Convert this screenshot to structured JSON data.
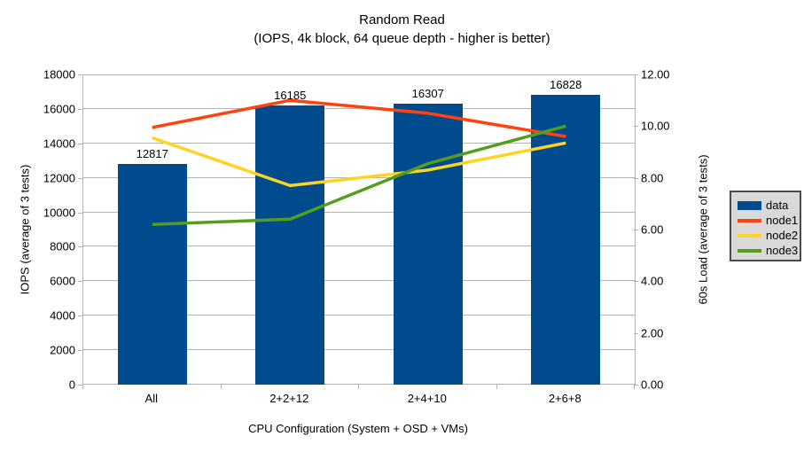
{
  "title": {
    "line1": "Random Read",
    "line2": "(IOPS, 4k block, 64 queue depth - higher is better)"
  },
  "colors": {
    "bar": "#004B8D",
    "node1": "#FF420E",
    "node2": "#FFD320",
    "node3": "#579D1C",
    "grid": "#B3B3B3",
    "legend_bg": "#D9D9D9",
    "legend_border": "#4A4A4A"
  },
  "chart_data": {
    "type": "bar+line combo",
    "title": "Random Read (IOPS, 4k block, 64 queue depth - higher is better)",
    "categories": [
      "All",
      "2+2+12",
      "2+4+10",
      "2+6+8"
    ],
    "bar_series": {
      "name": "data",
      "axis": "left",
      "color": "#004B8D",
      "values": [
        12817,
        16185,
        16307,
        16828
      ],
      "data_labels": [
        "12817",
        "16185",
        "16307",
        "16828"
      ]
    },
    "line_series": [
      {
        "name": "node1",
        "axis": "right",
        "color": "#FF420E",
        "values": [
          9.95,
          11.0,
          10.5,
          9.6
        ]
      },
      {
        "name": "node2",
        "axis": "right",
        "color": "#FFD320",
        "values": [
          9.55,
          7.7,
          8.3,
          9.35
        ]
      },
      {
        "name": "node3",
        "axis": "right",
        "color": "#579D1C",
        "values": [
          6.2,
          6.4,
          8.55,
          10.0
        ]
      }
    ],
    "left_axis": {
      "title": "IOPS (average of 3 tests)",
      "min": 0,
      "max": 18000,
      "step": 2000,
      "tick_labels": [
        "0",
        "2000",
        "4000",
        "6000",
        "8000",
        "10000",
        "12000",
        "14000",
        "16000",
        "18000"
      ]
    },
    "right_axis": {
      "title": "60s Load (average of 3 tests)",
      "min": 0,
      "max": 12,
      "step": 2,
      "tick_labels": [
        "0.00",
        "2.00",
        "4.00",
        "6.00",
        "8.00",
        "10.00",
        "12.00"
      ]
    },
    "x_axis": {
      "title": "CPU Configuration (System + OSD + VMs)"
    },
    "grid": "horizontal-on",
    "legend": {
      "position": "right",
      "items": [
        {
          "label": "data",
          "swatch": "bar",
          "color": "#004B8D"
        },
        {
          "label": "node1",
          "swatch": "line",
          "color": "#FF420E"
        },
        {
          "label": "node2",
          "swatch": "line",
          "color": "#FFD320"
        },
        {
          "label": "node3",
          "swatch": "line",
          "color": "#579D1C"
        }
      ]
    }
  }
}
